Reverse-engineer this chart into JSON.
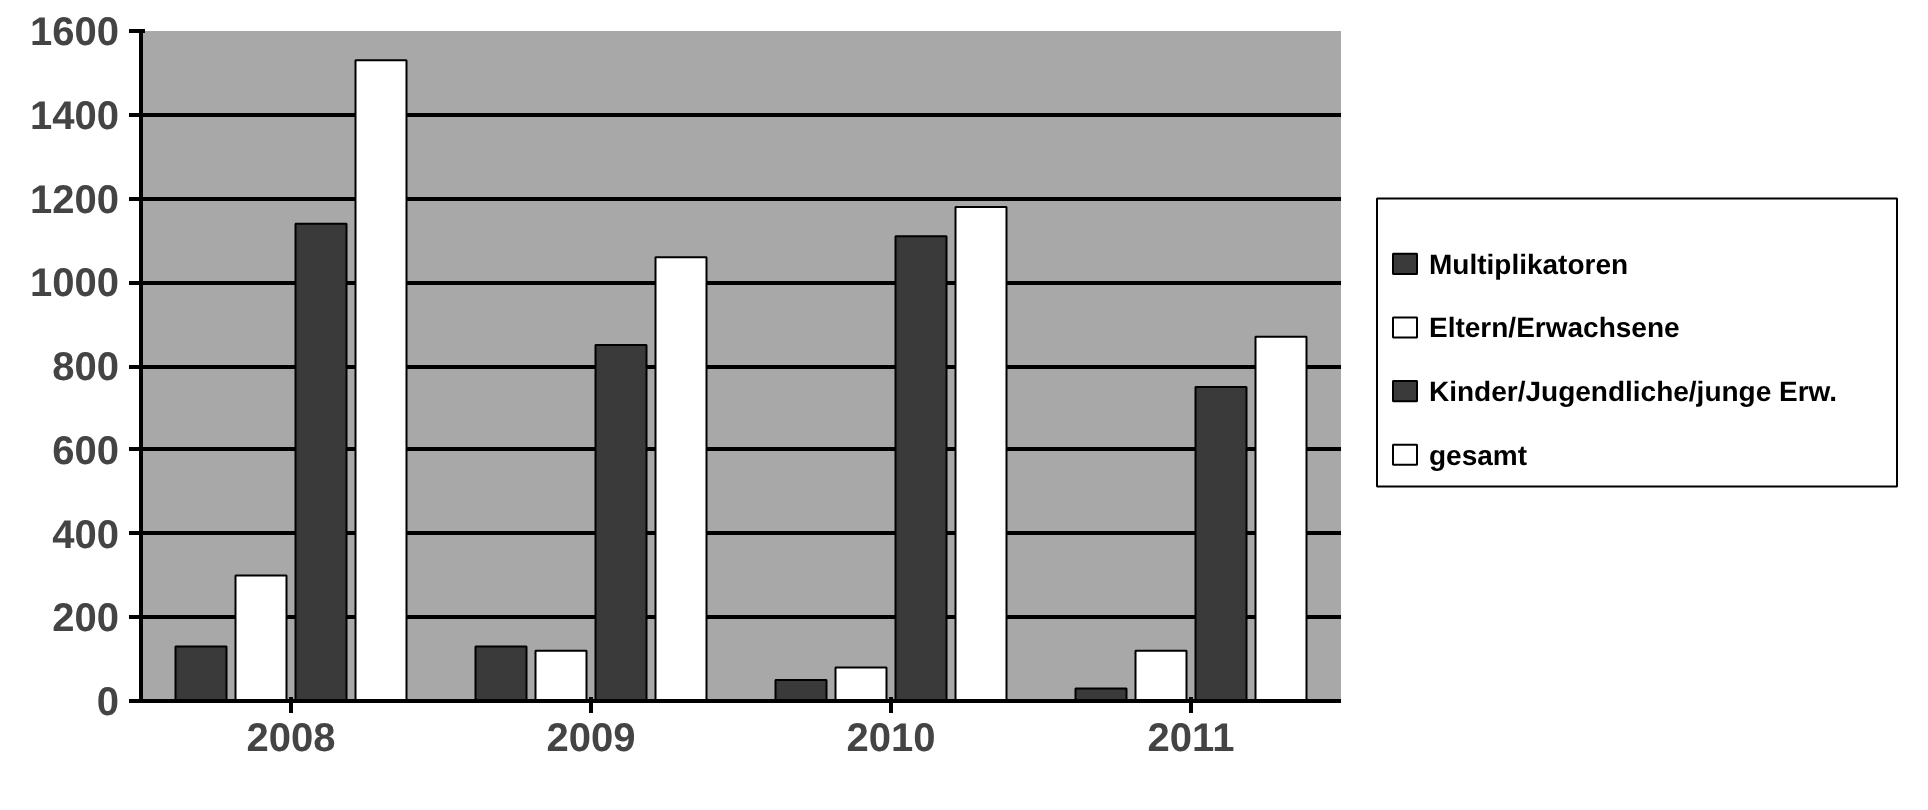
{
  "chart_data": {
    "type": "bar",
    "categories": [
      "2008",
      "2009",
      "2010",
      "2011"
    ],
    "series": [
      {
        "name": "Multiplikatoren",
        "color": "#3a3a3a",
        "values": [
          130,
          130,
          50,
          30
        ]
      },
      {
        "name": "Eltern/Erwachsene",
        "color": "#ffffff",
        "values": [
          300,
          120,
          80,
          120
        ]
      },
      {
        "name": "Kinder/Jugendliche/junge Erw.",
        "color": "#3a3a3a",
        "values": [
          1140,
          850,
          1110,
          750
        ]
      },
      {
        "name": "gesamt",
        "color": "#ffffff",
        "values": [
          1530,
          1060,
          1180,
          870
        ]
      }
    ],
    "ylim": [
      0,
      1600
    ],
    "yticks": [
      0,
      200,
      400,
      600,
      800,
      1000,
      1200,
      1400,
      1600
    ],
    "grid": "y",
    "legend": "right"
  }
}
